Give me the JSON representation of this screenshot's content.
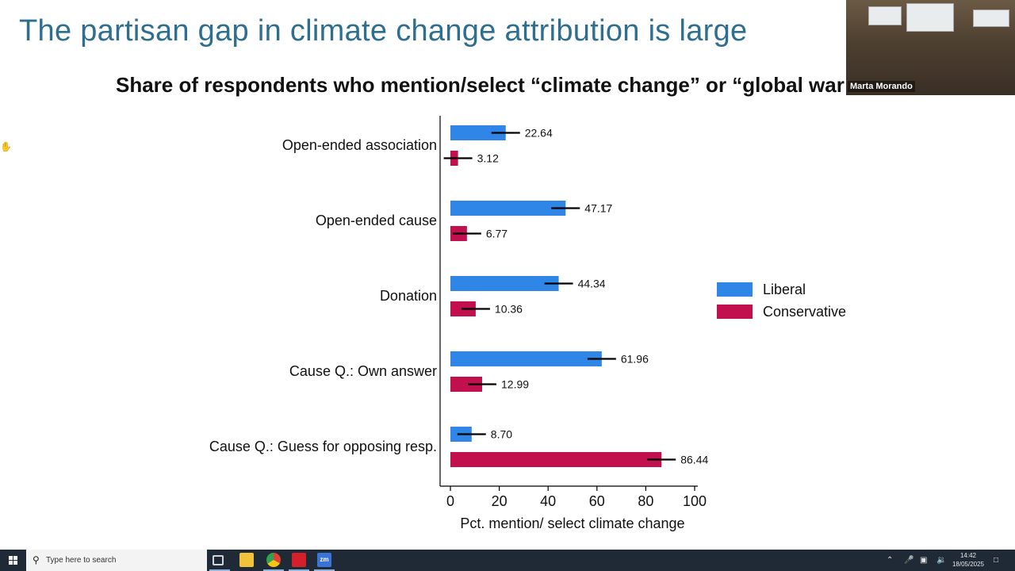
{
  "slide": {
    "title": "The partisan gap in climate change attribution is large",
    "chart_title": "Share of respondents who mention/select “climate change” or “global war"
  },
  "chart_data": {
    "type": "bar",
    "orientation": "horizontal",
    "categories": [
      "Open-ended association",
      "Open-ended cause",
      "Donation",
      "Cause Q.: Own answer",
      "Cause Q.: Guess for opposing resp."
    ],
    "series": [
      {
        "name": "Liberal",
        "color": "#2f86e6",
        "values": [
          22.64,
          47.17,
          44.34,
          61.96,
          8.7
        ],
        "labels": [
          "22.64",
          "47.17",
          "44.34",
          "61.96",
          "8.70"
        ]
      },
      {
        "name": "Conservative",
        "color": "#c2104f",
        "values": [
          3.12,
          6.77,
          10.36,
          12.99,
          86.44
        ],
        "labels": [
          "3.12",
          "6.77",
          "10.36",
          "12.99",
          "86.44"
        ]
      }
    ],
    "xlabel": "Pct. mention/ select climate change",
    "xlim": [
      0,
      100
    ],
    "xticks": [
      "0",
      "20",
      "40",
      "60",
      "80",
      "100"
    ],
    "error_bars": true,
    "legend": "right"
  },
  "video": {
    "participant_name": "Marta Morando"
  },
  "taskbar": {
    "search_placeholder": "Type here to search",
    "apps": [
      "task-view-icon",
      "file-explorer-icon",
      "chrome-icon",
      "acrobat-icon",
      "zoom-icon"
    ],
    "zoom_label": "zm",
    "time": "14:42",
    "date": "18/05/2025"
  }
}
